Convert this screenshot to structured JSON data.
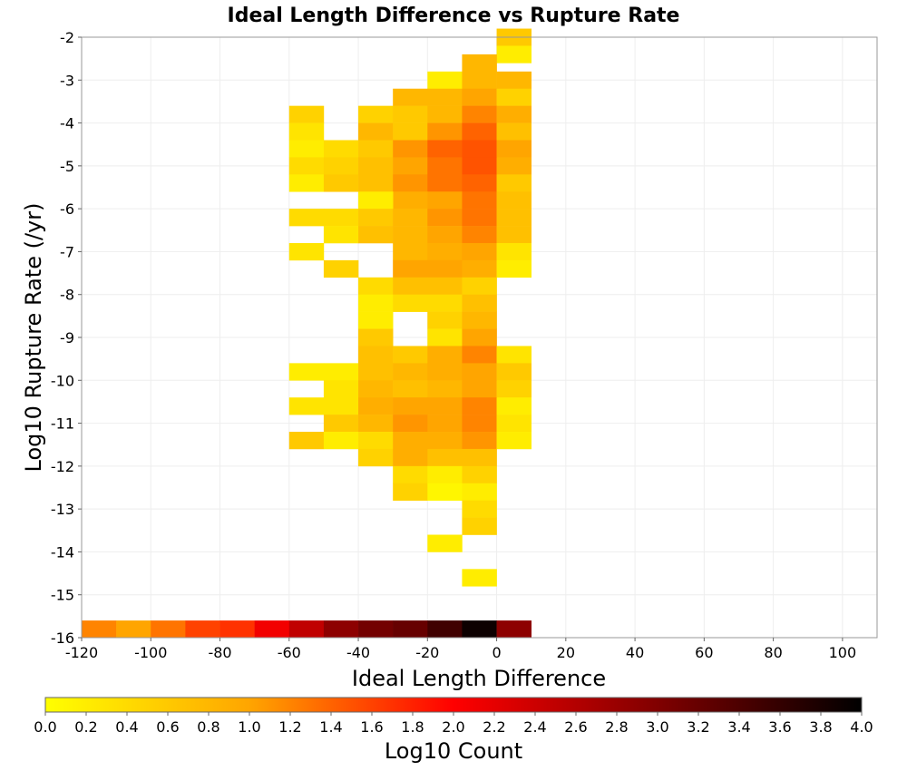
{
  "chart_data": {
    "type": "heatmap",
    "title": "Ideal Length Difference vs Rupture Rate",
    "xlabel": "Ideal Length Difference",
    "ylabel": "Log10 Rupture Rate (/yr)",
    "xlim": [
      -120,
      110
    ],
    "ylim": [
      -16,
      -2
    ],
    "xticks": [
      -120,
      -100,
      -80,
      -60,
      -40,
      -20,
      0,
      20,
      40,
      60,
      80,
      100
    ],
    "yticks": [
      -2,
      -3,
      -4,
      -5,
      -6,
      -7,
      -8,
      -9,
      -10,
      -11,
      -12,
      -13,
      -14,
      -15,
      -16
    ],
    "grid": true,
    "cell_size": {
      "x": 10,
      "y": 0.4
    },
    "colorbar": {
      "label": "Log10 Count",
      "range": [
        0.0,
        4.0
      ],
      "ticks": [
        "0.0",
        "0.2",
        "0.4",
        "0.6",
        "0.8",
        "1.0",
        "1.2",
        "1.4",
        "1.6",
        "1.8",
        "2.0",
        "2.2",
        "2.4",
        "2.6",
        "2.8",
        "3.0",
        "3.2",
        "3.4",
        "3.6",
        "3.8",
        "4.0"
      ],
      "colors": [
        "#ffff00",
        "#ffa500",
        "#ff0000",
        "#800000",
        "#000000"
      ]
    },
    "cells": [
      {
        "x": 0,
        "y": -2.2,
        "v": 0.6
      },
      {
        "x": 0,
        "y": -2.6,
        "v": 0.2
      },
      {
        "x": -10,
        "y": -2.8,
        "v": 0.8
      },
      {
        "x": -20,
        "y": -3.2,
        "v": 0.2
      },
      {
        "x": -10,
        "y": -3.2,
        "v": 0.8
      },
      {
        "x": 0,
        "y": -3.2,
        "v": 0.8
      },
      {
        "x": -30,
        "y": -3.6,
        "v": 0.8
      },
      {
        "x": -20,
        "y": -3.6,
        "v": 0.8
      },
      {
        "x": -10,
        "y": -3.6,
        "v": 1.0
      },
      {
        "x": 0,
        "y": -3.6,
        "v": 0.5
      },
      {
        "x": -60,
        "y": -4.0,
        "v": 0.5
      },
      {
        "x": -40,
        "y": -4.0,
        "v": 0.5
      },
      {
        "x": -30,
        "y": -4.0,
        "v": 0.6
      },
      {
        "x": -20,
        "y": -4.0,
        "v": 0.8
      },
      {
        "x": -10,
        "y": -4.0,
        "v": 1.2
      },
      {
        "x": 0,
        "y": -4.0,
        "v": 0.9
      },
      {
        "x": -60,
        "y": -4.4,
        "v": 0.3
      },
      {
        "x": -40,
        "y": -4.4,
        "v": 0.8
      },
      {
        "x": -30,
        "y": -4.4,
        "v": 0.6
      },
      {
        "x": -20,
        "y": -4.4,
        "v": 1.1
      },
      {
        "x": -10,
        "y": -4.4,
        "v": 1.4
      },
      {
        "x": 0,
        "y": -4.4,
        "v": 0.7
      },
      {
        "x": -60,
        "y": -4.8,
        "v": 0.2
      },
      {
        "x": -50,
        "y": -4.8,
        "v": 0.4
      },
      {
        "x": -40,
        "y": -4.8,
        "v": 0.6
      },
      {
        "x": -30,
        "y": -4.8,
        "v": 1.1
      },
      {
        "x": -20,
        "y": -4.8,
        "v": 1.4
      },
      {
        "x": -10,
        "y": -4.8,
        "v": 1.5
      },
      {
        "x": 0,
        "y": -4.8,
        "v": 1.0
      },
      {
        "x": -60,
        "y": -5.2,
        "v": 0.4
      },
      {
        "x": -50,
        "y": -5.2,
        "v": 0.5
      },
      {
        "x": -40,
        "y": -5.2,
        "v": 0.7
      },
      {
        "x": -30,
        "y": -5.2,
        "v": 1.0
      },
      {
        "x": -20,
        "y": -5.2,
        "v": 1.3
      },
      {
        "x": -10,
        "y": -5.2,
        "v": 1.5
      },
      {
        "x": 0,
        "y": -5.2,
        "v": 0.9
      },
      {
        "x": -60,
        "y": -5.6,
        "v": 0.2
      },
      {
        "x": -50,
        "y": -5.6,
        "v": 0.6
      },
      {
        "x": -40,
        "y": -5.6,
        "v": 0.7
      },
      {
        "x": -30,
        "y": -5.6,
        "v": 1.1
      },
      {
        "x": -20,
        "y": -5.6,
        "v": 1.3
      },
      {
        "x": -10,
        "y": -5.6,
        "v": 1.4
      },
      {
        "x": 0,
        "y": -5.6,
        "v": 0.6
      },
      {
        "x": -30,
        "y": -6.0,
        "v": 0.9
      },
      {
        "x": -20,
        "y": -6.0,
        "v": 1.0
      },
      {
        "x": -10,
        "y": -6.0,
        "v": 1.3
      },
      {
        "x": 0,
        "y": -6.0,
        "v": 0.7
      },
      {
        "x": -40,
        "y": -6.0,
        "v": 0.2
      },
      {
        "x": -60,
        "y": -6.4,
        "v": 0.4
      },
      {
        "x": -50,
        "y": -6.4,
        "v": 0.4
      },
      {
        "x": -40,
        "y": -6.4,
        "v": 0.6
      },
      {
        "x": -30,
        "y": -6.4,
        "v": 0.8
      },
      {
        "x": -20,
        "y": -6.4,
        "v": 1.1
      },
      {
        "x": -10,
        "y": -6.4,
        "v": 1.3
      },
      {
        "x": 0,
        "y": -6.4,
        "v": 0.7
      },
      {
        "x": -50,
        "y": -6.8,
        "v": 0.3
      },
      {
        "x": -40,
        "y": -6.8,
        "v": 0.7
      },
      {
        "x": -30,
        "y": -6.8,
        "v": 0.8
      },
      {
        "x": -20,
        "y": -6.8,
        "v": 1.0
      },
      {
        "x": -10,
        "y": -6.8,
        "v": 1.2
      },
      {
        "x": 0,
        "y": -6.8,
        "v": 0.7
      },
      {
        "x": -60,
        "y": -7.2,
        "v": 0.3
      },
      {
        "x": -30,
        "y": -7.2,
        "v": 0.8
      },
      {
        "x": -20,
        "y": -7.2,
        "v": 0.9
      },
      {
        "x": -10,
        "y": -7.2,
        "v": 1.0
      },
      {
        "x": 0,
        "y": -7.2,
        "v": 0.3
      },
      {
        "x": -50,
        "y": -7.6,
        "v": 0.5
      },
      {
        "x": -30,
        "y": -7.6,
        "v": 1.0
      },
      {
        "x": -20,
        "y": -7.6,
        "v": 1.0
      },
      {
        "x": -10,
        "y": -7.6,
        "v": 0.9
      },
      {
        "x": 0,
        "y": -7.6,
        "v": 0.2
      },
      {
        "x": -40,
        "y": -8.0,
        "v": 0.4
      },
      {
        "x": -30,
        "y": -8.0,
        "v": 0.7
      },
      {
        "x": -20,
        "y": -8.0,
        "v": 0.7
      },
      {
        "x": -10,
        "y": -8.0,
        "v": 0.5
      },
      {
        "x": -40,
        "y": -8.4,
        "v": 0.2
      },
      {
        "x": -30,
        "y": -8.4,
        "v": 0.4
      },
      {
        "x": -20,
        "y": -8.4,
        "v": 0.4
      },
      {
        "x": -10,
        "y": -8.4,
        "v": 0.7
      },
      {
        "x": -40,
        "y": -8.8,
        "v": 0.2
      },
      {
        "x": -20,
        "y": -8.8,
        "v": 0.5
      },
      {
        "x": -10,
        "y": -8.8,
        "v": 0.8
      },
      {
        "x": -20,
        "y": -9.2,
        "v": 0.3
      },
      {
        "x": -10,
        "y": -9.2,
        "v": 1.0
      },
      {
        "x": -40,
        "y": -9.2,
        "v": 0.6
      },
      {
        "x": -40,
        "y": -9.6,
        "v": 0.7
      },
      {
        "x": -30,
        "y": -9.6,
        "v": 0.6
      },
      {
        "x": -20,
        "y": -9.6,
        "v": 0.9
      },
      {
        "x": -10,
        "y": -9.6,
        "v": 1.2
      },
      {
        "x": 0,
        "y": -9.6,
        "v": 0.3
      },
      {
        "x": -60,
        "y": -10.0,
        "v": 0.2
      },
      {
        "x": -50,
        "y": -10.0,
        "v": 0.2
      },
      {
        "x": -40,
        "y": -10.0,
        "v": 0.7
      },
      {
        "x": -30,
        "y": -10.0,
        "v": 0.8
      },
      {
        "x": -20,
        "y": -10.0,
        "v": 0.9
      },
      {
        "x": -10,
        "y": -10.0,
        "v": 1.0
      },
      {
        "x": 0,
        "y": -10.0,
        "v": 0.6
      },
      {
        "x": -50,
        "y": -10.4,
        "v": 0.3
      },
      {
        "x": -40,
        "y": -10.4,
        "v": 0.8
      },
      {
        "x": -30,
        "y": -10.4,
        "v": 0.7
      },
      {
        "x": -20,
        "y": -10.4,
        "v": 0.8
      },
      {
        "x": -10,
        "y": -10.4,
        "v": 1.0
      },
      {
        "x": 0,
        "y": -10.4,
        "v": 0.5
      },
      {
        "x": -60,
        "y": -10.8,
        "v": 0.3
      },
      {
        "x": -50,
        "y": -10.8,
        "v": 0.3
      },
      {
        "x": -40,
        "y": -10.8,
        "v": 0.9
      },
      {
        "x": -30,
        "y": -10.8,
        "v": 1.0
      },
      {
        "x": -20,
        "y": -10.8,
        "v": 1.0
      },
      {
        "x": -10,
        "y": -10.8,
        "v": 1.2
      },
      {
        "x": 0,
        "y": -10.8,
        "v": 0.2
      },
      {
        "x": -50,
        "y": -11.2,
        "v": 0.6
      },
      {
        "x": -40,
        "y": -11.2,
        "v": 0.8
      },
      {
        "x": -30,
        "y": -11.2,
        "v": 1.1
      },
      {
        "x": -20,
        "y": -11.2,
        "v": 1.0
      },
      {
        "x": -10,
        "y": -11.2,
        "v": 1.2
      },
      {
        "x": 0,
        "y": -11.2,
        "v": 0.3
      },
      {
        "x": -60,
        "y": -11.6,
        "v": 0.6
      },
      {
        "x": -50,
        "y": -11.6,
        "v": 0.2
      },
      {
        "x": -40,
        "y": -11.6,
        "v": 0.4
      },
      {
        "x": -30,
        "y": -11.6,
        "v": 0.9
      },
      {
        "x": -20,
        "y": -11.6,
        "v": 0.9
      },
      {
        "x": -10,
        "y": -11.6,
        "v": 1.1
      },
      {
        "x": 0,
        "y": -11.6,
        "v": 0.2
      },
      {
        "x": -40,
        "y": -12.0,
        "v": 0.5
      },
      {
        "x": -30,
        "y": -12.0,
        "v": 0.9
      },
      {
        "x": -20,
        "y": -12.0,
        "v": 0.7
      },
      {
        "x": -10,
        "y": -12.0,
        "v": 0.7
      },
      {
        "x": -30,
        "y": -12.4,
        "v": 0.4
      },
      {
        "x": -20,
        "y": -12.4,
        "v": 0.2
      },
      {
        "x": -10,
        "y": -12.4,
        "v": 0.5
      },
      {
        "x": -30,
        "y": -12.8,
        "v": 0.5
      },
      {
        "x": -20,
        "y": -12.8,
        "v": 0.1
      },
      {
        "x": -10,
        "y": -12.8,
        "v": 0.2
      },
      {
        "x": -10,
        "y": -13.2,
        "v": 0.4
      },
      {
        "x": -10,
        "y": -13.6,
        "v": 0.5
      },
      {
        "x": -20,
        "y": -14.0,
        "v": 0.2
      },
      {
        "x": -10,
        "y": -14.8,
        "v": 0.2
      },
      {
        "x": -120,
        "y": -16.0,
        "v": 1.2
      },
      {
        "x": -110,
        "y": -16.0,
        "v": 1.0
      },
      {
        "x": -100,
        "y": -16.0,
        "v": 1.3
      },
      {
        "x": -90,
        "y": -16.0,
        "v": 1.6
      },
      {
        "x": -80,
        "y": -16.0,
        "v": 1.7
      },
      {
        "x": -70,
        "y": -16.0,
        "v": 2.1
      },
      {
        "x": -60,
        "y": -16.0,
        "v": 2.5
      },
      {
        "x": -50,
        "y": -16.0,
        "v": 2.9
      },
      {
        "x": -40,
        "y": -16.0,
        "v": 3.1
      },
      {
        "x": -30,
        "y": -16.0,
        "v": 3.2
      },
      {
        "x": -20,
        "y": -16.0,
        "v": 3.5
      },
      {
        "x": -10,
        "y": -16.0,
        "v": 3.9
      },
      {
        "x": 0,
        "y": -16.0,
        "v": 2.9
      }
    ]
  }
}
